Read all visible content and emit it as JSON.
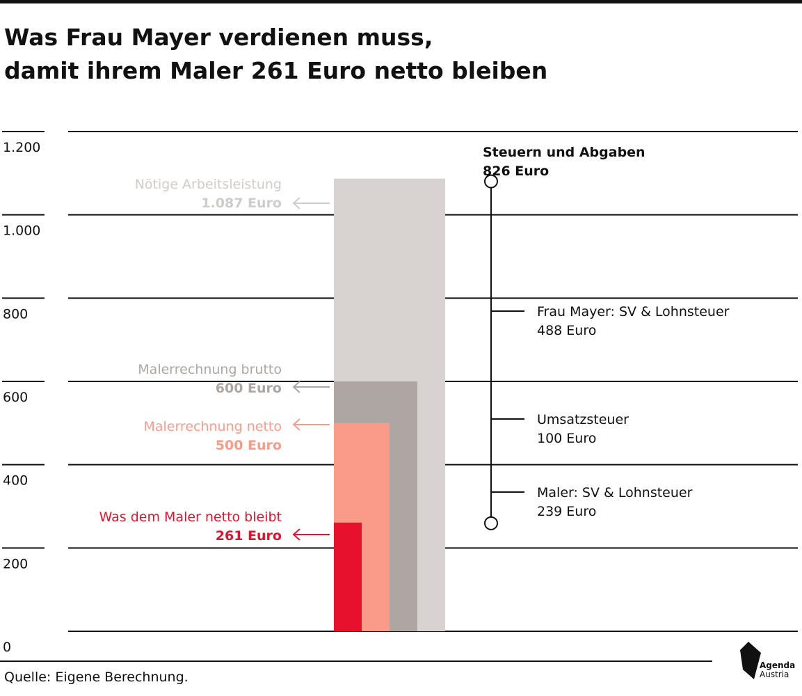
{
  "title_line1": "Was Frau Mayer verdienen muss,",
  "title_line2": "damit ihrem Maler 261 Euro netto bleiben",
  "source": "Quelle: Eigene Berechnung.",
  "brand": {
    "line1": "Agenda",
    "line2": "Austria"
  },
  "colors": {
    "text": "#111111",
    "arbeitsleistung": "#d8d3d0",
    "brutto": "#aea6a2",
    "netto": "#f99b88",
    "bleibt": "#e8112d",
    "label_arbeitsleistung": "#d0ccc9",
    "label_brutto": "#aea6a2",
    "label_netto": "#f99b88",
    "label_bleibt": "#e8112d"
  },
  "chart_data": {
    "type": "bar",
    "ylim": [
      0,
      1200
    ],
    "y_ticks": [
      {
        "value": 0,
        "label": "0"
      },
      {
        "value": 200,
        "label": "200"
      },
      {
        "value": 400,
        "label": "400"
      },
      {
        "value": 600,
        "label": "600"
      },
      {
        "value": 800,
        "label": "800"
      },
      {
        "value": 1000,
        "label": "1.000"
      },
      {
        "value": 1200,
        "label": "1.200"
      }
    ],
    "bars": [
      {
        "key": "arbeitsleistung",
        "value": 1087,
        "label": "Nötige Arbeitsleistung",
        "value_label": "1.087 Euro"
      },
      {
        "key": "brutto",
        "value": 600,
        "label": "Malerrechnung brutto",
        "value_label": "600 Euro"
      },
      {
        "key": "netto",
        "value": 500,
        "label": "Malerrechnung netto",
        "value_label": "500 Euro"
      },
      {
        "key": "bleibt",
        "value": 261,
        "label": "Was dem Maler netto bleibt",
        "value_label": "261 Euro"
      }
    ],
    "bracket": {
      "title": "Steuern und Abgaben",
      "title_value": "826 Euro",
      "from": 261,
      "to": 1087,
      "components": [
        {
          "label": "Frau Mayer: SV & Lohnsteuer",
          "value_label": "488 Euro",
          "value": 488
        },
        {
          "label": "Umsatzsteuer",
          "value_label": "100 Euro",
          "value": 100
        },
        {
          "label": "Maler: SV & Lohnsteuer",
          "value_label": "239 Euro",
          "value": 239
        }
      ]
    }
  }
}
